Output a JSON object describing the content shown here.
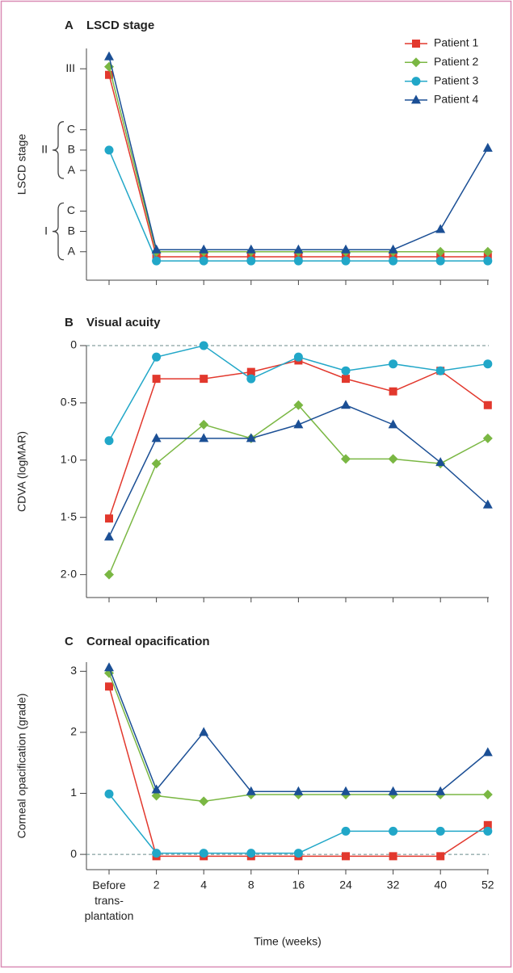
{
  "chart_data": [
    {
      "type": "line",
      "label": "A",
      "title": "LSCD stage",
      "ylabel": "LSCD stage",
      "ylim": [
        -0.4,
        11
      ],
      "yticks": [
        {
          "value": 1,
          "label": "A"
        },
        {
          "value": 2,
          "label": "B"
        },
        {
          "value": 3,
          "label": "C"
        },
        {
          "value": 5,
          "label": "A"
        },
        {
          "value": 6,
          "label": "B"
        },
        {
          "value": 7,
          "label": "C"
        },
        {
          "value": 10,
          "label": "III"
        }
      ],
      "ytick_groups": [
        {
          "label": "I",
          "range": [
            1,
            3
          ]
        },
        {
          "label": "II",
          "range": [
            5,
            7
          ]
        }
      ],
      "legend": "upper right",
      "series": [
        {
          "name": "Patient 1",
          "color": "#e2382d",
          "marker": "square",
          "values": [
            9.7,
            0.75,
            0.75,
            0.75,
            0.75,
            0.75,
            0.75,
            0.75,
            0.75
          ]
        },
        {
          "name": "Patient 2",
          "color": "#7ab743",
          "marker": "diamond",
          "values": [
            10.1,
            1,
            1,
            1,
            1,
            1,
            1,
            1,
            1
          ]
        },
        {
          "name": "Patient 3",
          "color": "#21a7c8",
          "marker": "circle",
          "values": [
            6,
            0.55,
            0.55,
            0.55,
            0.55,
            0.55,
            0.55,
            0.55,
            0.55
          ]
        },
        {
          "name": "Patient 4",
          "color": "#1b4f95",
          "marker": "triangle",
          "values": [
            10.6,
            1.1,
            1.1,
            1.1,
            1.1,
            1.1,
            1.1,
            2.1,
            6.1
          ]
        }
      ]
    },
    {
      "type": "line",
      "label": "B",
      "title": "Visual acuity",
      "ylabel": "CDVA (logMAR)",
      "ylim": [
        0,
        2.2
      ],
      "yinverted": true,
      "zero_line": true,
      "yticks": [
        0,
        {
          "value": 0.5,
          "label": "0·5"
        },
        {
          "value": 1,
          "label": "1·0"
        },
        {
          "value": 1.5,
          "label": "1·5"
        },
        {
          "value": 2,
          "label": "2·0"
        }
      ],
      "series": [
        {
          "color": "#e2382d",
          "marker": "square",
          "values": [
            1.51,
            0.29,
            0.29,
            0.23,
            0.13,
            0.29,
            0.4,
            0.22,
            0.52
          ]
        },
        {
          "color": "#7ab743",
          "marker": "diamond",
          "values": [
            2.0,
            1.03,
            0.69,
            0.81,
            0.52,
            0.99,
            0.99,
            1.03,
            0.81
          ]
        },
        {
          "color": "#21a7c8",
          "marker": "circle",
          "values": [
            0.83,
            0.1,
            0,
            0.29,
            0.1,
            0.22,
            0.16,
            0.22,
            0.16
          ]
        },
        {
          "color": "#1b4f95",
          "marker": "triangle",
          "values": [
            1.67,
            0.81,
            0.81,
            0.81,
            0.69,
            0.52,
            0.69,
            1.02,
            1.39
          ]
        }
      ]
    },
    {
      "type": "line",
      "label": "C",
      "title": "Corneal opacification",
      "ylabel": "Corneal opacification (grade)",
      "xlabel": "Time (weeks)",
      "categories": [
        "Before trans-plantation",
        "2",
        "4",
        "8",
        "16",
        "24",
        "32",
        "40",
        "52"
      ],
      "ylim": [
        -0.25,
        3.15
      ],
      "yticks": [
        0,
        1,
        2,
        3
      ],
      "zero_line": true,
      "series": [
        {
          "color": "#e2382d",
          "marker": "square",
          "values": [
            2.75,
            -0.03,
            -0.03,
            -0.03,
            -0.03,
            -0.03,
            -0.03,
            -0.03,
            0.48
          ]
        },
        {
          "color": "#7ab743",
          "marker": "diamond",
          "values": [
            2.97,
            0.96,
            0.87,
            0.98,
            0.98,
            0.98,
            0.98,
            0.98,
            0.98
          ]
        },
        {
          "color": "#21a7c8",
          "marker": "circle",
          "values": [
            0.99,
            0.02,
            0.02,
            0.02,
            0.02,
            0.38,
            0.38,
            0.38,
            0.38
          ]
        },
        {
          "color": "#1b4f95",
          "marker": "triangle",
          "values": [
            3.06,
            1.06,
            2.0,
            1.03,
            1.03,
            1.03,
            1.03,
            1.03,
            1.67
          ]
        }
      ]
    }
  ]
}
